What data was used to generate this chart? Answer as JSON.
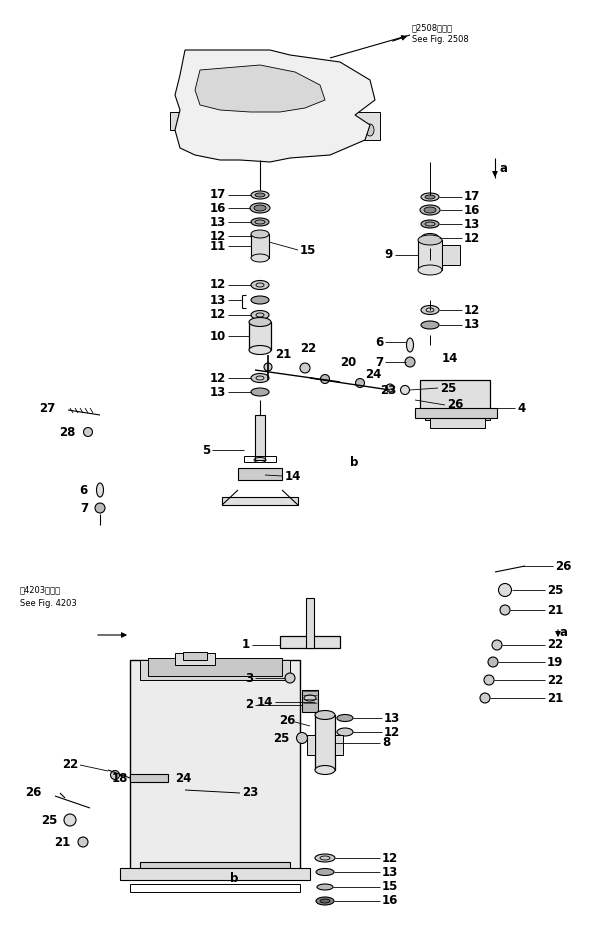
{
  "bg_color": "#ffffff",
  "lc": "#000000",
  "fig_width": 6.1,
  "fig_height": 9.32,
  "dpi": 100,
  "top_ref_jp": "第2508図参照",
  "top_ref_en": "See Fig. 2508",
  "bot_ref_jp": "第4203図参照",
  "bot_ref_en": "See Fig. 4203",
  "fs": 7.5,
  "fs_ref": 6.0,
  "fs_label": 8.5
}
